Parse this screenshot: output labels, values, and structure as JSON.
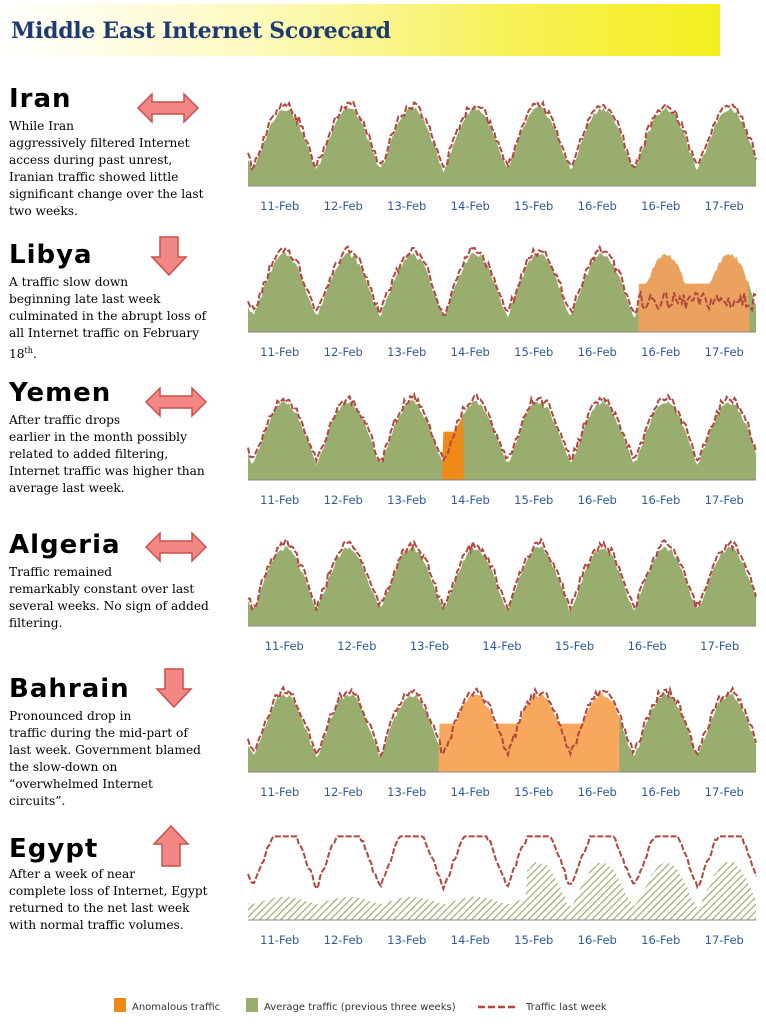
{
  "title": "Middle East Internet Scorecard",
  "colors": {
    "average": "#98ad6e",
    "anomalous": "#ef8a18",
    "bahrain_anom": "#f7a85c",
    "libya_anom": "#eba25e",
    "line": "#b0483f",
    "axis": "#2e5a9a"
  },
  "legend": {
    "anomalous": "Anomalous traffic",
    "average": "Average traffic (previous three weeks)",
    "line": "Traffic last week"
  },
  "countries": [
    {
      "name": "Iran",
      "trend": "steady",
      "description": "While Iran\naggressively filtered Internet\naccess during past unrest,\nIranian traffic showed little\nsignificant change over the last\ntwo weeks."
    },
    {
      "name": "Libya",
      "trend": "down",
      "description": "A traffic slow down\nbeginning late last week\nculminated in the abrupt loss of\nall Internet traffic on February\n18",
      "description_sup": "th",
      "description_end": "."
    },
    {
      "name": "Yemen",
      "trend": "steady",
      "description": "After traffic drops\nearlier in the month possibly\nrelated to added filtering,\nInternet traffic was higher than\naverage last week."
    },
    {
      "name": "Algeria",
      "trend": "steady",
      "description": "Traffic remained\nremarkably constant over last\nseveral weeks. No sign of added\nfiltering."
    },
    {
      "name": "Bahrain",
      "trend": "down",
      "description": "Pronounced drop in\ntraffic during the mid-part of\nlast week. Government blamed\nthe slow-down on\n“overwhelmed Internet\ncircuits”."
    },
    {
      "name": "Egypt",
      "trend": "up",
      "description": "After a week of near\ncomplete loss of Internet, Egypt\nreturned to the net last week\nwith normal traffic volumes."
    }
  ],
  "chart_data": [
    {
      "type": "area",
      "country": "Iran",
      "categories": [
        "11-Feb",
        "12-Feb",
        "13-Feb",
        "14-Feb",
        "15-Feb",
        "16-Feb",
        "16-Feb",
        "17-Feb"
      ],
      "series": [
        {
          "name": "Average traffic (previous three weeks)",
          "kind": "area"
        },
        {
          "name": "Traffic last week",
          "kind": "dashed-line"
        }
      ],
      "anomalies": []
    },
    {
      "type": "area",
      "country": "Libya",
      "categories": [
        "11-Feb",
        "12-Feb",
        "13-Feb",
        "14-Feb",
        "15-Feb",
        "16-Feb",
        "16-Feb",
        "17-Feb"
      ],
      "series": [
        {
          "name": "Average traffic (previous three weeks)",
          "kind": "area"
        },
        {
          "name": "Traffic last week",
          "kind": "dashed-line"
        }
      ],
      "anomalies": [
        {
          "start": 6.15,
          "end": 7.9
        }
      ]
    },
    {
      "type": "area",
      "country": "Yemen",
      "categories": [
        "11-Feb",
        "12-Feb",
        "13-Feb",
        "14-Feb",
        "15-Feb",
        "16-Feb",
        "16-Feb",
        "17-Feb"
      ],
      "series": [
        {
          "name": "Average traffic (previous three weeks)",
          "kind": "area"
        },
        {
          "name": "Traffic last week",
          "kind": "dashed-line"
        }
      ],
      "anomalies": [
        {
          "start": 3.05,
          "end": 3.4
        }
      ]
    },
    {
      "type": "area",
      "country": "Algeria",
      "categories": [
        "11-Feb",
        "12-Feb",
        "13-Feb",
        "14-Feb",
        "15-Feb",
        "16-Feb",
        "17-Feb"
      ],
      "series": [
        {
          "name": "Average traffic (previous three weeks)",
          "kind": "area"
        },
        {
          "name": "Traffic last week",
          "kind": "dashed-line"
        }
      ],
      "anomalies": []
    },
    {
      "type": "area",
      "country": "Bahrain",
      "categories": [
        "11-Feb",
        "12-Feb",
        "13-Feb",
        "14-Feb",
        "15-Feb",
        "16-Feb",
        "16-Feb",
        "17-Feb"
      ],
      "series": [
        {
          "name": "Average traffic (previous three weeks)",
          "kind": "area"
        },
        {
          "name": "Traffic last week",
          "kind": "dashed-line"
        }
      ],
      "anomalies": [
        {
          "start": 3.0,
          "end": 5.85
        }
      ]
    },
    {
      "type": "area",
      "country": "Egypt",
      "categories": [
        "11-Feb",
        "12-Feb",
        "13-Feb",
        "14-Feb",
        "15-Feb",
        "16-Feb",
        "16-Feb",
        "17-Feb"
      ],
      "series": [
        {
          "name": "Average traffic (previous three weeks)",
          "kind": "hatched-area"
        },
        {
          "name": "Traffic last week",
          "kind": "dashed-line"
        }
      ],
      "anomalies": []
    }
  ]
}
